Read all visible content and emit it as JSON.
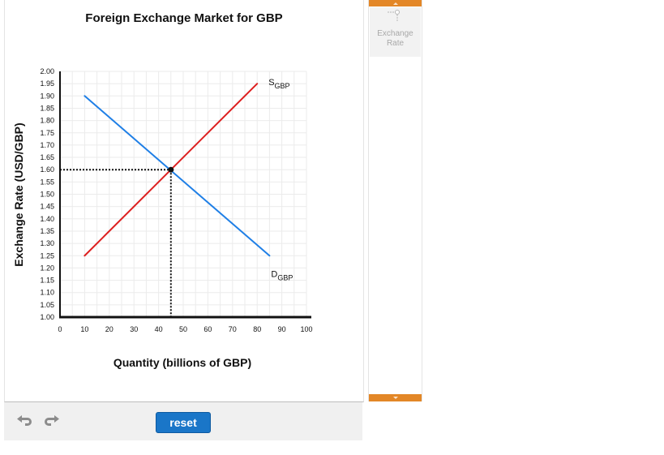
{
  "chart_data": {
    "type": "line",
    "title": "Foreign Exchange Market for GBP",
    "xlabel": "Quantity (billions of GBP)",
    "ylabel": "Exchange Rate (USD/GBP)",
    "xlim": [
      0,
      100
    ],
    "ylim": [
      1.0,
      2.0
    ],
    "x_ticks": [
      "0",
      "10",
      "20",
      "30",
      "40",
      "50",
      "60",
      "70",
      "80",
      "90",
      "100"
    ],
    "y_ticks": [
      "1.00",
      "1.05",
      "1.10",
      "1.15",
      "1.20",
      "1.25",
      "1.30",
      "1.35",
      "1.40",
      "1.45",
      "1.50",
      "1.55",
      "1.60",
      "1.65",
      "1.70",
      "1.75",
      "1.80",
      "1.85",
      "1.90",
      "1.95",
      "2.00"
    ],
    "grid": true,
    "series": [
      {
        "id": "supply",
        "label_main": "S",
        "label_sub": "GBP",
        "color": "#dd1f1f",
        "points": [
          [
            10,
            1.25
          ],
          [
            80,
            1.95
          ]
        ]
      },
      {
        "id": "demand",
        "label_main": "D",
        "label_sub": "GBP",
        "color": "#1f7fe6",
        "points": [
          [
            10,
            1.9
          ],
          [
            85,
            1.25
          ]
        ]
      }
    ],
    "equilibrium": {
      "x": 45,
      "y": 1.6
    }
  },
  "toolbar": {
    "reset_label": "reset",
    "undo_icon": "undo-icon",
    "redo_icon": "redo-icon"
  },
  "palette": {
    "tool_label_line1": "Exchange",
    "tool_label_line2": "Rate",
    "tool_icon": "point-drop-line-icon",
    "accent_color": "#e38727"
  }
}
